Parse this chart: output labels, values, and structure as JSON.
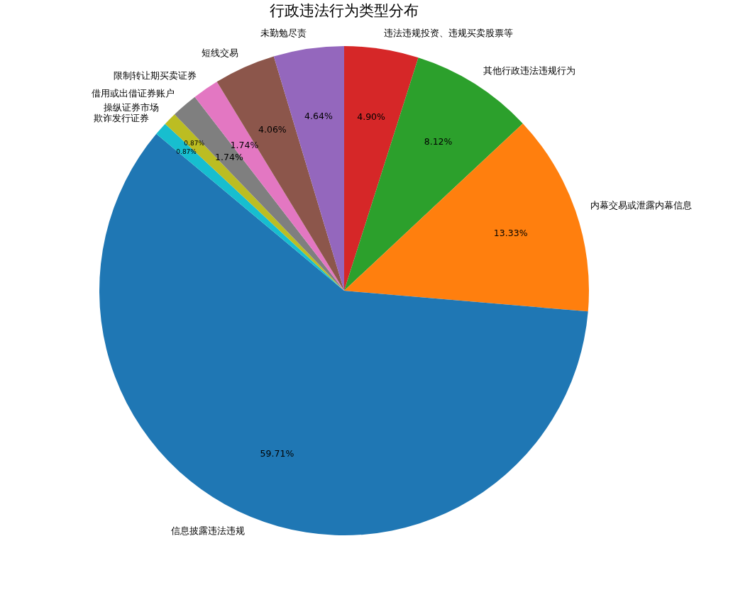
{
  "chart_data": {
    "type": "pie",
    "title": "行政违法行为类型分布",
    "categories": [
      "违法违规投资、违规买卖股票等",
      "其他行政违法违规行为",
      "内幕交易或泄露内幕信息",
      "信息披露违法违规",
      "欺诈发行证券",
      "操纵证券市场",
      "借用或出借证券账户",
      "限制转让期买卖证券",
      "短线交易",
      "未勤勉尽责"
    ],
    "values": [
      4.9,
      8.12,
      13.33,
      59.71,
      0.87,
      0.87,
      1.74,
      1.74,
      4.06,
      4.64
    ],
    "colors": [
      "#d62728",
      "#2ca02c",
      "#ff7f0e",
      "#1f77b4",
      "#17becf",
      "#bcbd22",
      "#7f7f7f",
      "#e377c2",
      "#8c564b",
      "#9467bd"
    ],
    "value_labels": [
      "4.90%",
      "8.12%",
      "13.33%",
      "59.71%",
      "0.87%",
      "0.87%",
      "1.74%",
      "1.74%",
      "4.06%",
      "4.64%"
    ]
  }
}
